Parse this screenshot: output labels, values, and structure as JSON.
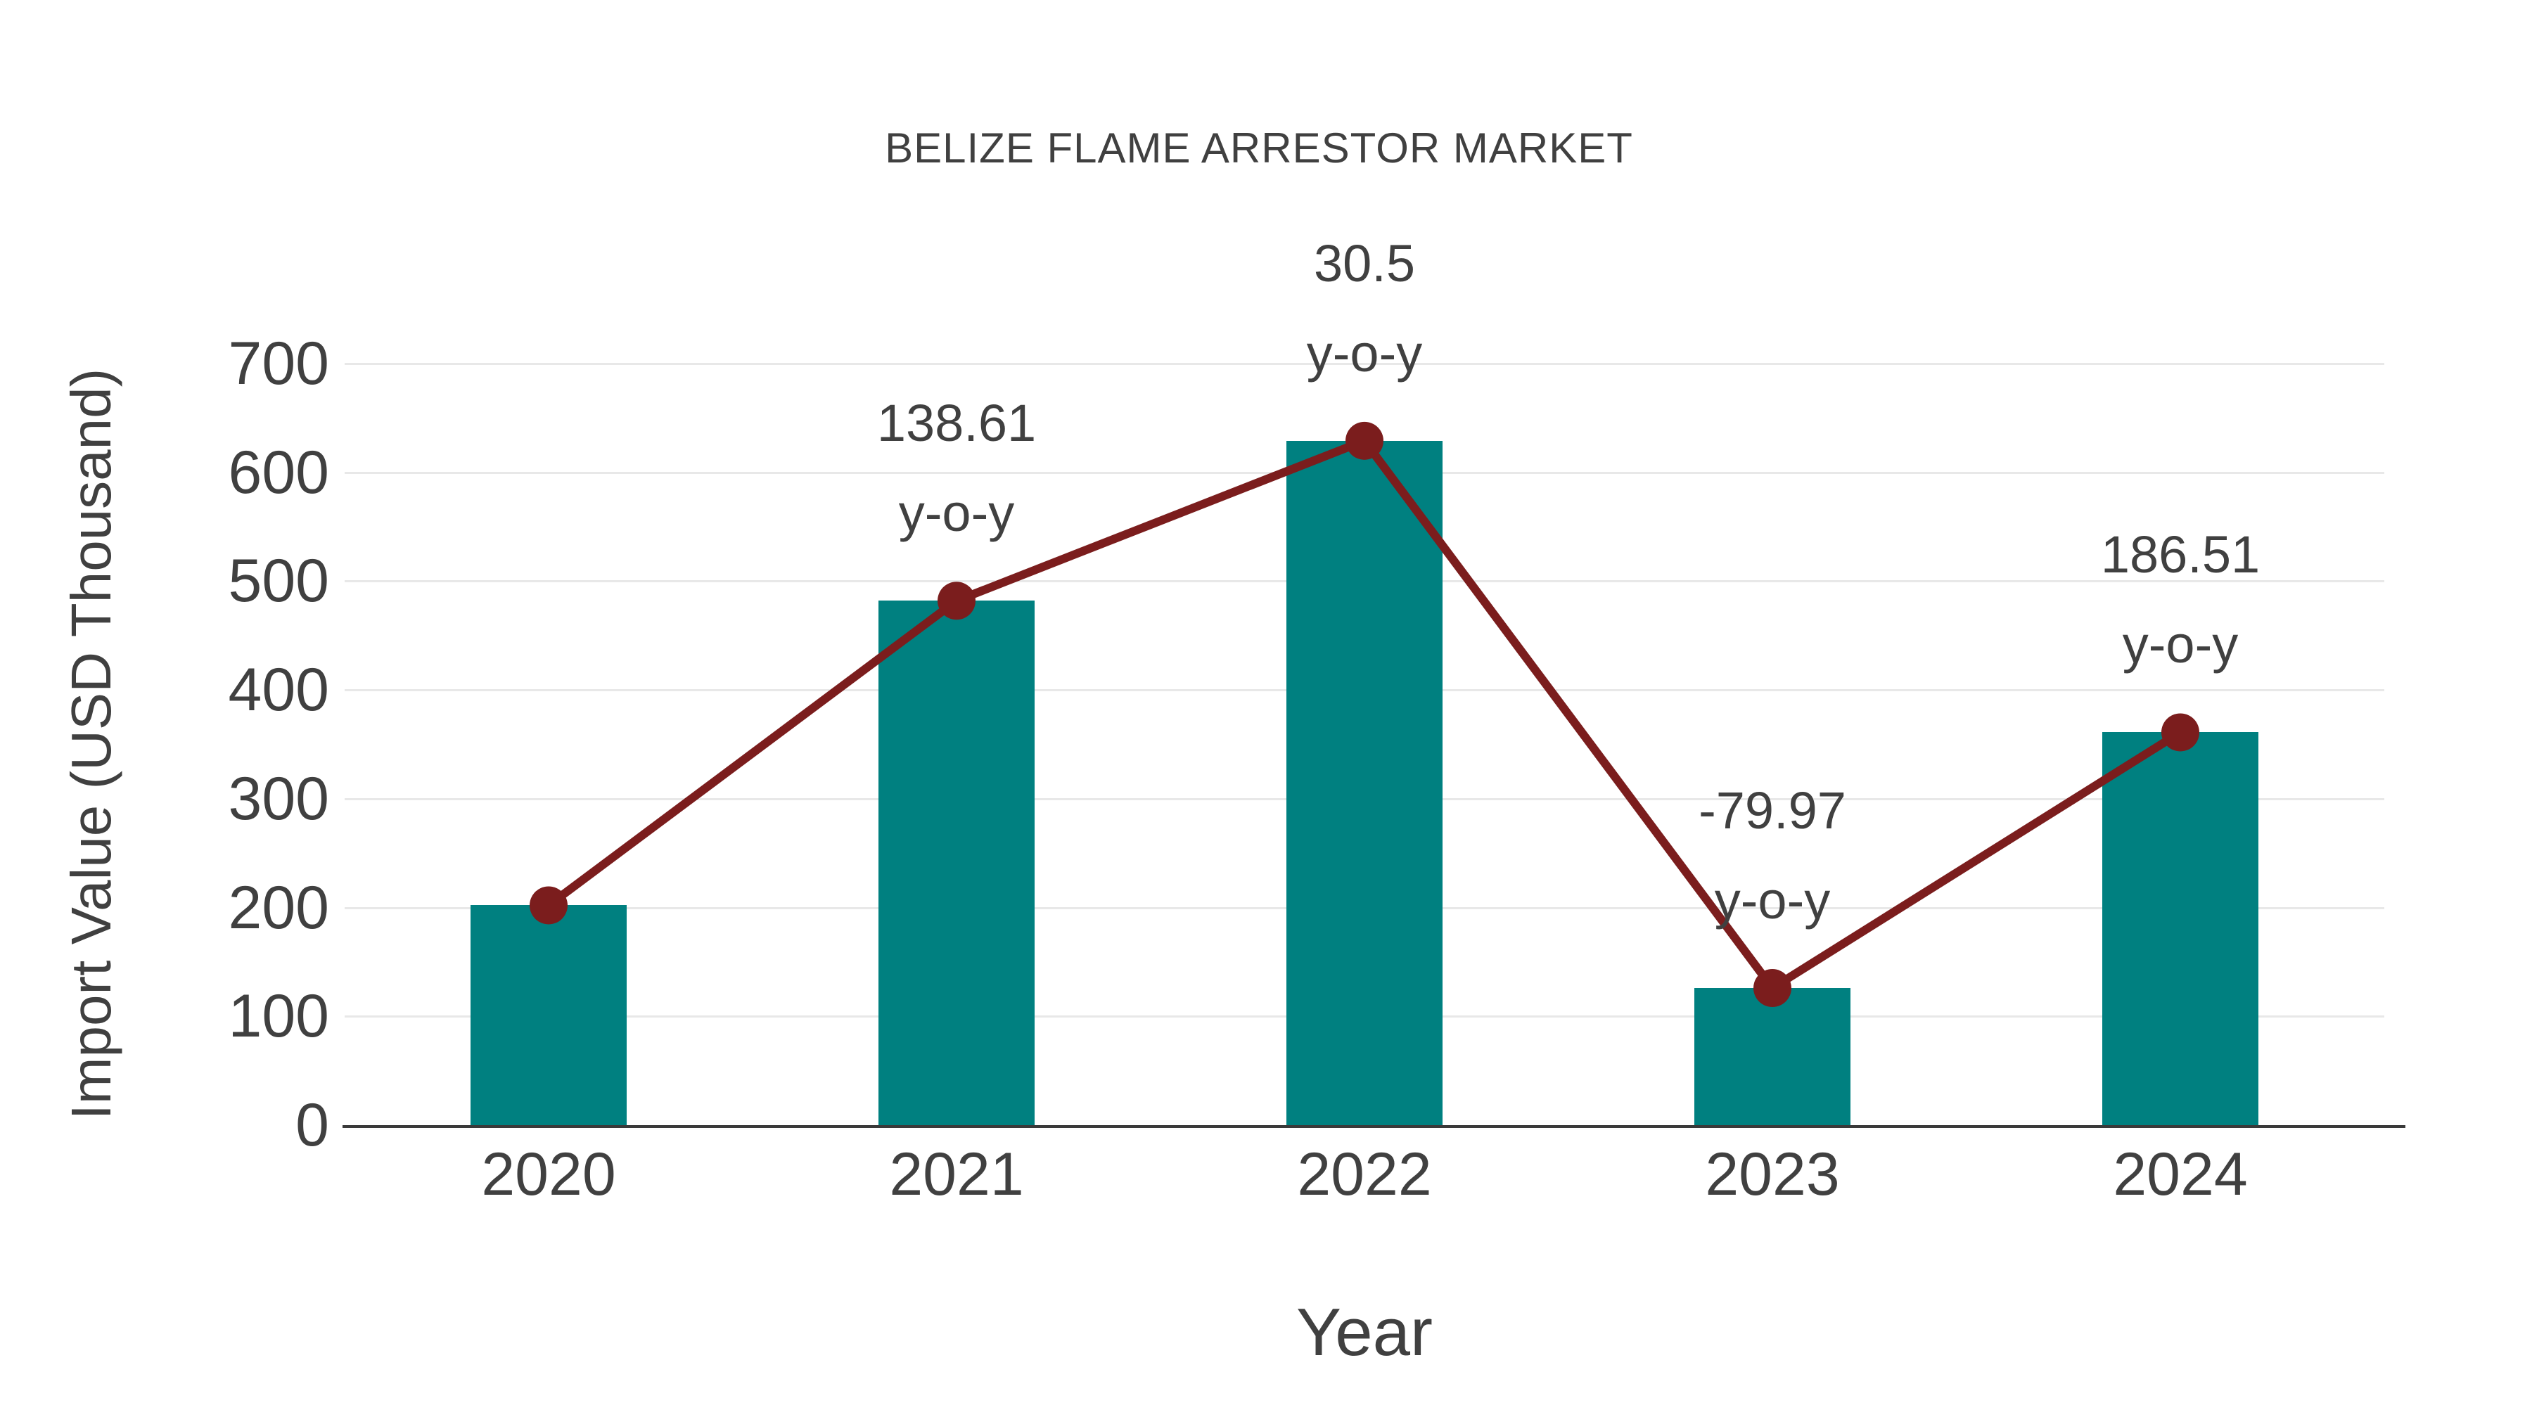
{
  "figure": {
    "background": "#FFFFFF"
  },
  "chart_data": {
    "type": "bar",
    "title": "BELIZE FLAME ARRESTOR MARKET",
    "xlabel": "Year",
    "ylabel": "Import Value (USD Thousand)",
    "categories": [
      "2020",
      "2021",
      "2022",
      "2023",
      "2024"
    ],
    "series": [
      {
        "name": "Import Value (USD Thousand)",
        "type": "bar",
        "color": "#008080",
        "values": [
          202,
          482,
          629,
          126,
          361
        ]
      },
      {
        "name": "y-o-y growth trend",
        "type": "line",
        "color": "#7B1D1D",
        "values": [
          202,
          482,
          629,
          126,
          361
        ]
      }
    ],
    "annotations": [
      {
        "category": "2021",
        "text_lines": [
          "138.61",
          "y-o-y"
        ]
      },
      {
        "category": "2022",
        "text_lines": [
          "30.5",
          "y-o-y"
        ]
      },
      {
        "category": "2023",
        "text_lines": [
          "-79.97",
          "y-o-y"
        ]
      },
      {
        "category": "2024",
        "text_lines": [
          "186.51",
          "y-o-y"
        ]
      }
    ],
    "ylim": [
      0,
      700
    ],
    "yticks": [
      0,
      100,
      200,
      300,
      400,
      500,
      600,
      700
    ],
    "grid": true,
    "legend_position": "none",
    "colors": {
      "bar": "#008080",
      "line": "#7B1D1D",
      "marker": "#7B1D1D",
      "text": "#404040",
      "gridline": "#E8E8E8",
      "axis_line": "#3A3A3A",
      "background": "#FFFFFF"
    }
  }
}
